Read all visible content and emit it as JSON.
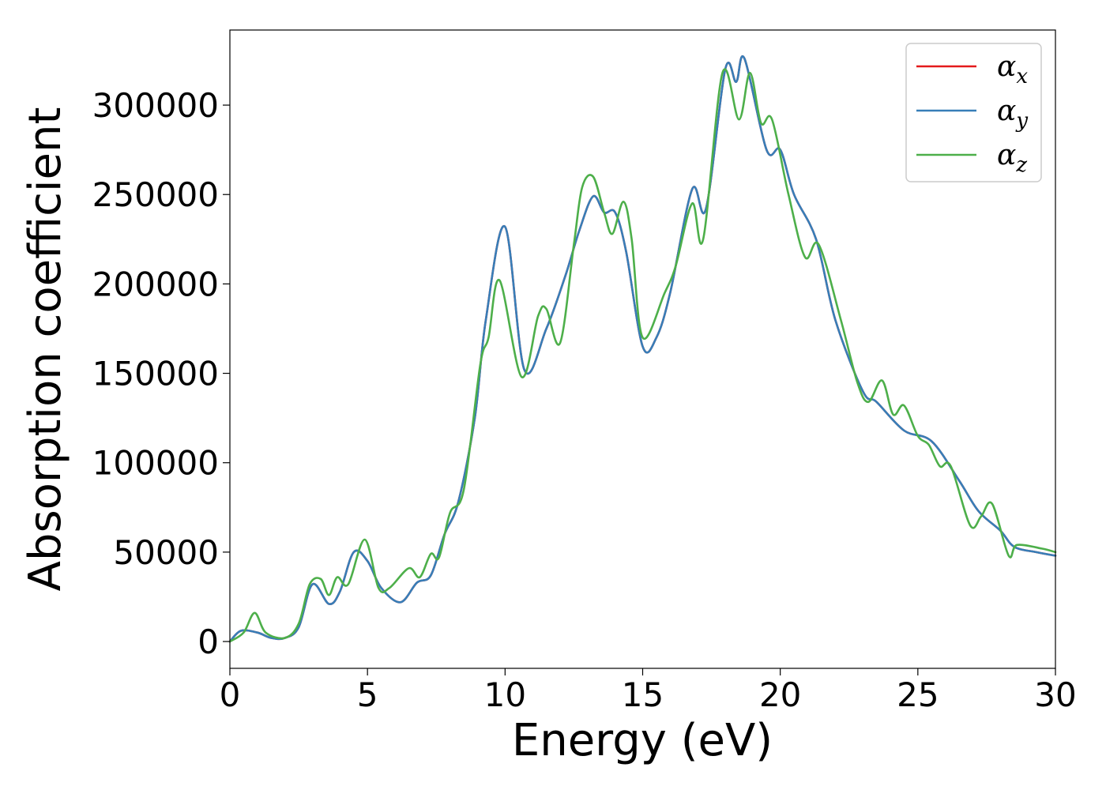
{
  "chart_data": {
    "type": "line",
    "xlabel": "Energy (eV)",
    "ylabel": "Absorption coefficient",
    "xlim": [
      0,
      30
    ],
    "ylim": [
      -15000,
      342000
    ],
    "xticks": [
      0,
      5,
      10,
      15,
      20,
      25,
      30
    ],
    "xtick_labels": [
      "0",
      "5",
      "10",
      "15",
      "20",
      "25",
      "30"
    ],
    "yticks": [
      0,
      50000,
      100000,
      150000,
      200000,
      250000,
      300000
    ],
    "ytick_labels": [
      "0",
      "50000",
      "100000",
      "150000",
      "200000",
      "250000",
      "300000"
    ],
    "grid": false,
    "legend_position": "top-right",
    "series": [
      {
        "name": "α",
        "subscript": "x",
        "color": "#e41a1c",
        "points": [
          [
            0,
            0
          ],
          [
            0.4,
            6000
          ],
          [
            1,
            5000
          ],
          [
            1.5,
            2000
          ],
          [
            2,
            2000
          ],
          [
            2.5,
            8000
          ],
          [
            3,
            32000
          ],
          [
            3.6,
            21000
          ],
          [
            4,
            28000
          ],
          [
            4.5,
            50000
          ],
          [
            5,
            45000
          ],
          [
            5.5,
            30000
          ],
          [
            6.2,
            22000
          ],
          [
            6.8,
            33000
          ],
          [
            7.3,
            37000
          ],
          [
            7.8,
            60000
          ],
          [
            8.3,
            78000
          ],
          [
            8.9,
            125000
          ],
          [
            9.3,
            180000
          ],
          [
            10,
            232000
          ],
          [
            10.7,
            152000
          ],
          [
            11.5,
            175000
          ],
          [
            12.2,
            205000
          ],
          [
            12.7,
            230000
          ],
          [
            13.2,
            249000
          ],
          [
            13.6,
            240000
          ],
          [
            14,
            240000
          ],
          [
            14.4,
            218000
          ],
          [
            15,
            165000
          ],
          [
            15.5,
            170000
          ],
          [
            16,
            195000
          ],
          [
            16.8,
            253000
          ],
          [
            17.3,
            242000
          ],
          [
            18,
            320000
          ],
          [
            18.4,
            313000
          ],
          [
            18.7,
            326000
          ],
          [
            19.5,
            275000
          ],
          [
            20,
            275000
          ],
          [
            20.5,
            250000
          ],
          [
            21.3,
            225000
          ],
          [
            22,
            180000
          ],
          [
            23,
            140000
          ],
          [
            23.5,
            134000
          ],
          [
            24.5,
            118000
          ],
          [
            25.5,
            112000
          ],
          [
            26.5,
            90000
          ],
          [
            27.2,
            73000
          ],
          [
            28,
            62000
          ],
          [
            28.5,
            53000
          ],
          [
            29.3,
            50000
          ],
          [
            30,
            48000
          ]
        ]
      },
      {
        "name": "α",
        "subscript": "y",
        "color": "#377eb8",
        "points": [
          [
            0,
            0
          ],
          [
            0.4,
            6000
          ],
          [
            1,
            5000
          ],
          [
            1.5,
            2000
          ],
          [
            2,
            2000
          ],
          [
            2.5,
            8000
          ],
          [
            3,
            32000
          ],
          [
            3.6,
            21000
          ],
          [
            4,
            28000
          ],
          [
            4.5,
            50000
          ],
          [
            5,
            45000
          ],
          [
            5.5,
            30000
          ],
          [
            6.2,
            22000
          ],
          [
            6.8,
            33000
          ],
          [
            7.3,
            37000
          ],
          [
            7.8,
            60000
          ],
          [
            8.3,
            78000
          ],
          [
            8.9,
            125000
          ],
          [
            9.3,
            180000
          ],
          [
            10,
            232000
          ],
          [
            10.7,
            152000
          ],
          [
            11.5,
            175000
          ],
          [
            12.2,
            205000
          ],
          [
            12.7,
            230000
          ],
          [
            13.2,
            249000
          ],
          [
            13.6,
            240000
          ],
          [
            14,
            240000
          ],
          [
            14.4,
            218000
          ],
          [
            15,
            165000
          ],
          [
            15.5,
            170000
          ],
          [
            16,
            195000
          ],
          [
            16.8,
            253000
          ],
          [
            17.3,
            242000
          ],
          [
            18,
            320000
          ],
          [
            18.4,
            313000
          ],
          [
            18.7,
            326000
          ],
          [
            19.5,
            275000
          ],
          [
            20,
            275000
          ],
          [
            20.5,
            250000
          ],
          [
            21.3,
            225000
          ],
          [
            22,
            180000
          ],
          [
            23,
            140000
          ],
          [
            23.5,
            134000
          ],
          [
            24.5,
            118000
          ],
          [
            25.5,
            112000
          ],
          [
            26.5,
            90000
          ],
          [
            27.2,
            73000
          ],
          [
            28,
            62000
          ],
          [
            28.5,
            53000
          ],
          [
            29.3,
            50000
          ],
          [
            30,
            48000
          ]
        ]
      },
      {
        "name": "α",
        "subscript": "z",
        "color": "#4daf4a",
        "points": [
          [
            0,
            0
          ],
          [
            0.5,
            5000
          ],
          [
            0.9,
            16000
          ],
          [
            1.3,
            5000
          ],
          [
            2,
            2000
          ],
          [
            2.5,
            10000
          ],
          [
            2.9,
            32000
          ],
          [
            3.3,
            35000
          ],
          [
            3.6,
            26000
          ],
          [
            3.9,
            36000
          ],
          [
            4.3,
            32000
          ],
          [
            4.9,
            57000
          ],
          [
            5.4,
            30000
          ],
          [
            5.8,
            30000
          ],
          [
            6.5,
            41000
          ],
          [
            6.9,
            36000
          ],
          [
            7.3,
            49000
          ],
          [
            7.6,
            47000
          ],
          [
            8,
            72000
          ],
          [
            8.5,
            85000
          ],
          [
            9.1,
            155000
          ],
          [
            9.4,
            170000
          ],
          [
            9.8,
            202000
          ],
          [
            10.6,
            148000
          ],
          [
            11.2,
            182000
          ],
          [
            11.5,
            186000
          ],
          [
            12,
            167000
          ],
          [
            12.5,
            222000
          ],
          [
            12.8,
            254000
          ],
          [
            13.2,
            260000
          ],
          [
            13.6,
            240000
          ],
          [
            13.9,
            228000
          ],
          [
            14.3,
            246000
          ],
          [
            14.6,
            225000
          ],
          [
            15,
            170000
          ],
          [
            15.8,
            195000
          ],
          [
            16.2,
            210000
          ],
          [
            16.8,
            245000
          ],
          [
            17.2,
            225000
          ],
          [
            17.9,
            318000
          ],
          [
            18.5,
            292000
          ],
          [
            18.9,
            318000
          ],
          [
            19.3,
            290000
          ],
          [
            19.7,
            292000
          ],
          [
            20.3,
            250000
          ],
          [
            20.9,
            215000
          ],
          [
            21.4,
            222000
          ],
          [
            22.2,
            180000
          ],
          [
            22.8,
            145000
          ],
          [
            23.2,
            134000
          ],
          [
            23.7,
            146000
          ],
          [
            24.1,
            127000
          ],
          [
            24.5,
            132000
          ],
          [
            25,
            115000
          ],
          [
            25.4,
            110000
          ],
          [
            25.8,
            98000
          ],
          [
            26.2,
            98000
          ],
          [
            26.9,
            65000
          ],
          [
            27.3,
            70000
          ],
          [
            27.7,
            77000
          ],
          [
            28.3,
            48000
          ],
          [
            28.6,
            54000
          ],
          [
            29.5,
            52000
          ],
          [
            30,
            50000
          ]
        ]
      }
    ]
  }
}
